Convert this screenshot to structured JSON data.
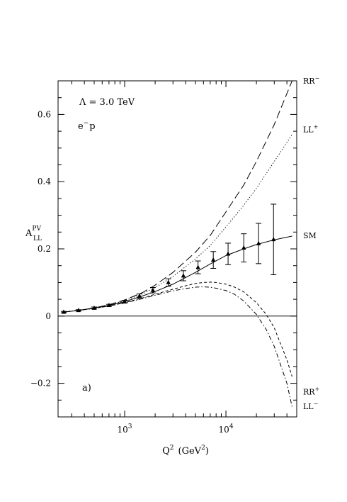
{
  "chart_data": {
    "type": "line",
    "xlabel": "Q",
    "xlabel_sup": "2",
    "xlabel_units": "(GeV",
    "xlabel_units_sup": "2",
    "xlabel_units_close": ")",
    "ylabel": "A",
    "ylabel_sup": "PV",
    "ylabel_sub": "LL",
    "x_scale": "log",
    "xlim": [
      220,
      50000
    ],
    "ylim": [
      -0.3,
      0.7
    ],
    "x_ticks": [
      {
        "value": 1000,
        "base": "10",
        "exp": "3"
      },
      {
        "value": 10000,
        "base": "10",
        "exp": "4"
      }
    ],
    "y_ticks": [
      {
        "value": -0.2,
        "label": "−0.2"
      },
      {
        "value": 0,
        "label": "0"
      },
      {
        "value": 0.2,
        "label": "0.2"
      },
      {
        "value": 0.4,
        "label": "0.4"
      },
      {
        "value": 0.6,
        "label": "0.6"
      }
    ],
    "annotations": {
      "lambda": "Λ = 3.0 TeV",
      "process_base": "e",
      "process_sup": "−",
      "process_tail": "p",
      "panel": "a)"
    },
    "reference_line_y": 0,
    "series": [
      {
        "name": "RR",
        "sup": "−",
        "style": "long-dash",
        "x": [
          250,
          350,
          500,
          700,
          1000,
          1500,
          2000,
          3000,
          5000,
          7000,
          10000,
          15000,
          20000,
          30000,
          45000
        ],
        "y": [
          0.012,
          0.017,
          0.024,
          0.034,
          0.048,
          0.07,
          0.092,
          0.13,
          0.19,
          0.24,
          0.31,
          0.39,
          0.46,
          0.57,
          0.7
        ]
      },
      {
        "name": "LL",
        "sup": "+",
        "style": "dotted",
        "x": [
          250,
          350,
          500,
          700,
          1000,
          1500,
          2000,
          3000,
          5000,
          7000,
          10000,
          15000,
          20000,
          30000,
          45000
        ],
        "y": [
          0.012,
          0.017,
          0.024,
          0.033,
          0.046,
          0.066,
          0.085,
          0.118,
          0.17,
          0.21,
          0.265,
          0.33,
          0.38,
          0.46,
          0.54
        ]
      },
      {
        "name": "SM",
        "sup": "",
        "style": "solid",
        "x": [
          250,
          350,
          500,
          700,
          1000,
          1500,
          2000,
          3000,
          5000,
          7000,
          10000,
          15000,
          20000,
          30000,
          45000
        ],
        "y": [
          0.012,
          0.017,
          0.024,
          0.032,
          0.043,
          0.06,
          0.073,
          0.095,
          0.13,
          0.155,
          0.18,
          0.2,
          0.213,
          0.227,
          0.238
        ]
      },
      {
        "name": "RR",
        "sup": "+",
        "style": "short-dash",
        "x": [
          250,
          350,
          500,
          700,
          1000,
          1500,
          2000,
          3000,
          4000,
          5000,
          6000,
          7000,
          8000,
          10000,
          12000,
          15000,
          20000,
          25000,
          30000,
          40000,
          45000
        ],
        "y": [
          0.012,
          0.017,
          0.023,
          0.03,
          0.04,
          0.054,
          0.065,
          0.08,
          0.09,
          0.097,
          0.1,
          0.101,
          0.1,
          0.095,
          0.087,
          0.072,
          0.04,
          0.005,
          -0.035,
          -0.13,
          -0.18
        ]
      },
      {
        "name": "LL",
        "sup": "−",
        "style": "dash-dot",
        "x": [
          250,
          350,
          500,
          700,
          1000,
          1500,
          2000,
          3000,
          4000,
          5000,
          6000,
          7000,
          8000,
          10000,
          12000,
          15000,
          20000,
          25000,
          30000,
          40000,
          45000
        ],
        "y": [
          0.012,
          0.017,
          0.023,
          0.03,
          0.039,
          0.052,
          0.062,
          0.075,
          0.082,
          0.086,
          0.087,
          0.086,
          0.083,
          0.076,
          0.066,
          0.045,
          0.005,
          -0.04,
          -0.09,
          -0.2,
          -0.27
        ]
      }
    ],
    "data_points": {
      "marker": "triangle",
      "x": [
        250,
        350,
        500,
        700,
        1000,
        1400,
        1900,
        2700,
        3800,
        5300,
        7500,
        10500,
        15000,
        21000,
        29500
      ],
      "y": [
        0.012,
        0.017,
        0.024,
        0.032,
        0.043,
        0.06,
        0.077,
        0.1,
        0.12,
        0.145,
        0.167,
        0.185,
        0.203,
        0.216,
        0.228
      ],
      "err": [
        0.002,
        0.002,
        0.003,
        0.003,
        0.004,
        0.006,
        0.008,
        0.011,
        0.015,
        0.019,
        0.025,
        0.032,
        0.042,
        0.06,
        0.105
      ]
    }
  }
}
